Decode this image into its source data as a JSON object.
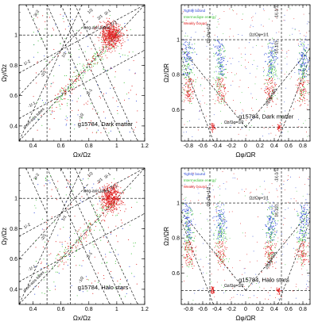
{
  "colors": {
    "tight": "#2b46d8",
    "intermediate": "#3fc23a",
    "weak": "#e02020",
    "axis": "#000000",
    "dashed": "#000000"
  },
  "chart_data": [
    {
      "id": "p1",
      "type": "scatter",
      "xlabel": "Ωx/Ωz",
      "ylabel": "Ωy/Ωz",
      "xlim": [
        0.3,
        1.2
      ],
      "ylim": [
        0.3,
        1.2
      ],
      "xticks": [
        0.4,
        0.6,
        0.8,
        1,
        1.2
      ],
      "yticks": [
        0.4,
        0.6,
        0.8,
        1
      ],
      "label": "g15784, Dark matter",
      "annotations": [
        {
          "text": "long-axis tubes"
        },
        {
          "text": "short-axis tubes"
        },
        {
          "text": "3/-2"
        },
        {
          "text": "-2/1"
        },
        {
          "text": "1/-2"
        },
        {
          "text": "2/-1"
        },
        {
          "text": "2/1"
        },
        {
          "text": "1/2"
        },
        {
          "text": "3/-1"
        },
        {
          "text": "-1/-1"
        },
        {
          "text": "1/1"
        },
        {
          "text": "1/-1"
        },
        {
          "text": "-1/2"
        }
      ]
    },
    {
      "id": "p2",
      "type": "scatter",
      "xlabel": "Ωφ/ΩR",
      "ylabel": "Ωz/ΩR",
      "xlim": [
        -0.9,
        0.9
      ],
      "ylim": [
        0.42,
        1.2
      ],
      "xticks": [
        -0.8,
        -0.6,
        -0.4,
        -0.2,
        0,
        0.2,
        0.4,
        0.6,
        0.8
      ],
      "yticks": [
        0.6,
        0.8,
        1
      ],
      "label": "g15784, Dark matter",
      "legend": [
        "Tightly bound",
        "Intermediate energy",
        "Weakly bound"
      ],
      "annotations": [
        {
          "text": "Ωz/Ωφ+1/1"
        },
        {
          "text": "-1/(-1/1)"
        },
        {
          "text": "Ωz-Ωφ=1/2"
        },
        {
          "text": "1/(-1/2)"
        },
        {
          "text": "Ωz/Ωφ=1/2"
        },
        {
          "text": "2/(Ωφ=1/2)"
        }
      ]
    },
    {
      "id": "p3",
      "type": "scatter",
      "xlabel": "Ωx/Ωz",
      "ylabel": "Ωy/Ωz",
      "xlim": [
        0.3,
        1.2
      ],
      "ylim": [
        0.3,
        1.2
      ],
      "xticks": [
        0.4,
        0.6,
        0.8,
        1,
        1.2
      ],
      "yticks": [
        0.4,
        0.6,
        0.8,
        1
      ],
      "label": "g15784, Halo stars",
      "annotations": [
        {
          "text": "long-axis tubes"
        },
        {
          "text": "short-axis tubes"
        },
        {
          "text": "3/-2"
        },
        {
          "text": "-2/1"
        },
        {
          "text": "1/-2"
        },
        {
          "text": "2/-1"
        },
        {
          "text": "2/1"
        },
        {
          "text": "1/2"
        },
        {
          "text": "3/-1"
        },
        {
          "text": "-1/-1"
        },
        {
          "text": "1/1"
        },
        {
          "text": "1/-1"
        },
        {
          "text": "-1/2"
        }
      ]
    },
    {
      "id": "p4",
      "type": "scatter",
      "xlabel": "Ωφ/ΩR",
      "ylabel": "Ωz/ΩR",
      "xlim": [
        -0.9,
        0.9
      ],
      "ylim": [
        0.42,
        1.2
      ],
      "xticks": [
        -0.8,
        -0.6,
        -0.4,
        -0.2,
        0,
        0.2,
        0.4,
        0.6,
        0.8
      ],
      "yticks": [
        0.6,
        0.8,
        1
      ],
      "label": "g15784, Halo stars",
      "legend": [
        "Tightly bound",
        "Intermediate energy",
        "Weakly bound"
      ],
      "annotations": [
        {
          "text": "Ωz/Ωφ+1/1"
        },
        {
          "text": "-1/(-1/1)"
        },
        {
          "text": "Ωz-Ωφ=1/2"
        },
        {
          "text": "1/(-1/2)"
        },
        {
          "text": "Ωz/Ωφ=1/2"
        },
        {
          "text": "2/(Ωφ=1/2)"
        }
      ]
    }
  ]
}
